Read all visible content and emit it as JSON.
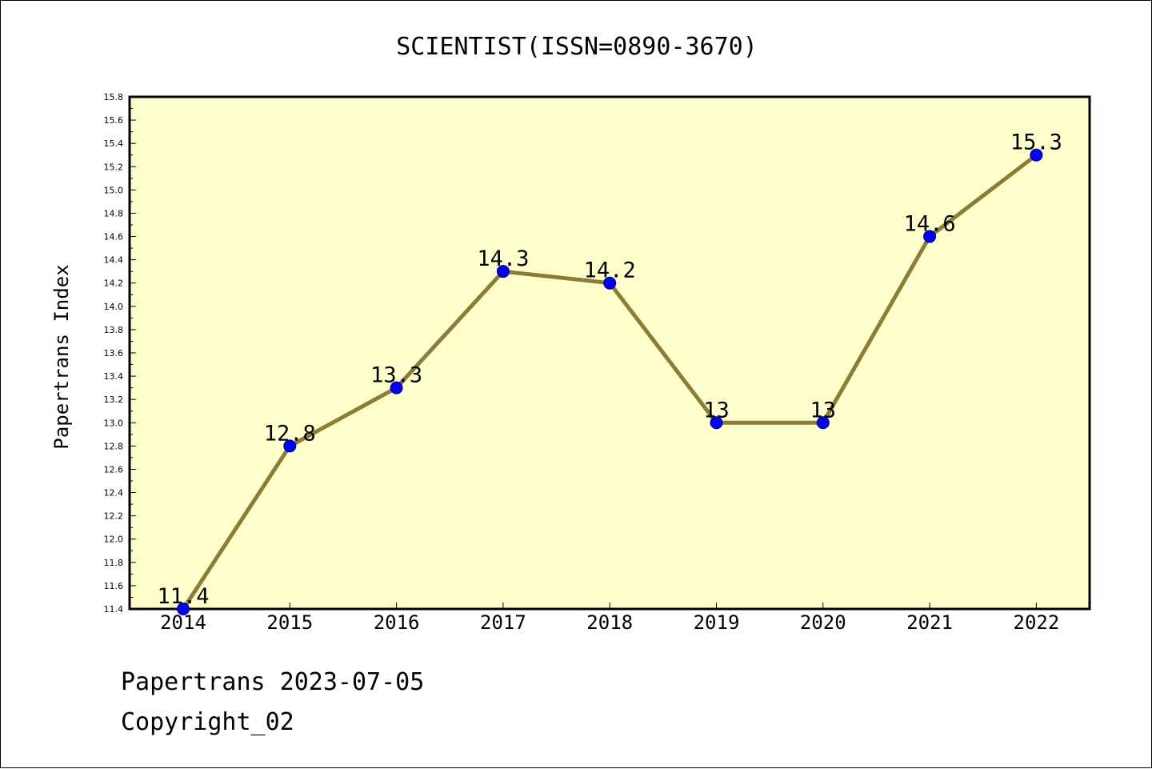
{
  "chart_data": {
    "type": "line",
    "title": "SCIENTIST(ISSN=0890-3670)",
    "xlabel": "",
    "ylabel": "Papertrans Index",
    "categories": [
      "2014",
      "2015",
      "2016",
      "2017",
      "2018",
      "2019",
      "2020",
      "2021",
      "2022"
    ],
    "series": [
      {
        "values": [
          11.4,
          12.8,
          13.3,
          14.3,
          14.2,
          13.0,
          13.0,
          14.6,
          15.3
        ],
        "labels": [
          "11.4",
          "12.8",
          "13.3",
          "14.3",
          "14.2",
          "13",
          "13",
          "14.6",
          "15.3"
        ]
      }
    ],
    "ylim": [
      11.4,
      15.8
    ],
    "yticks": [
      "11.4",
      "11.6",
      "11.8",
      "12.0",
      "12.2",
      "12.4",
      "12.6",
      "12.8",
      "13.0",
      "13.2",
      "13.4",
      "13.6",
      "13.8",
      "14.0",
      "14.2",
      "14.4",
      "14.6",
      "14.8",
      "15.0",
      "15.2",
      "15.4",
      "15.6",
      "15.8"
    ],
    "grid": false,
    "colors": {
      "plot_background": "#ffffcc",
      "line": "#8b7d35",
      "marker": "#0000ff",
      "marker_edge": "#000080"
    }
  },
  "footer": {
    "date_line": "Papertrans 2023-07-05",
    "copyright_line": "Copyright_02"
  }
}
